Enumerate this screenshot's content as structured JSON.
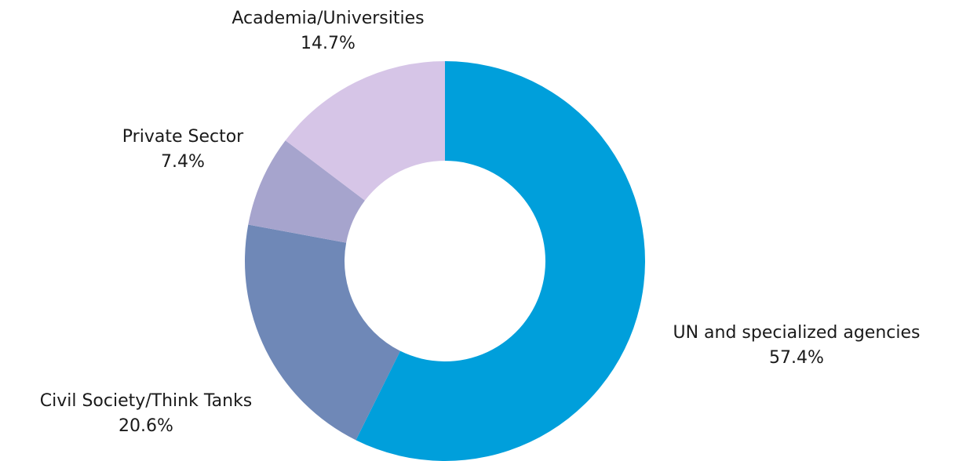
{
  "chart_data": {
    "type": "pie",
    "donut": true,
    "start_angle_deg": 0,
    "direction": "clockwise",
    "slices": [
      {
        "label": "UN and specialized agencies",
        "value": 57.4,
        "value_label": "57.4%",
        "color": "#009FDB"
      },
      {
        "label": "Civil Society/Think Tanks",
        "value": 20.6,
        "value_label": "20.6%",
        "color": "#6F88B7"
      },
      {
        "label": "Private Sector",
        "value": 7.4,
        "value_label": "7.4%",
        "color": "#A6A4CD"
      },
      {
        "label": "Academia/Universities",
        "value": 14.7,
        "value_label": "14.7%",
        "color": "#D6C5E7"
      }
    ]
  }
}
